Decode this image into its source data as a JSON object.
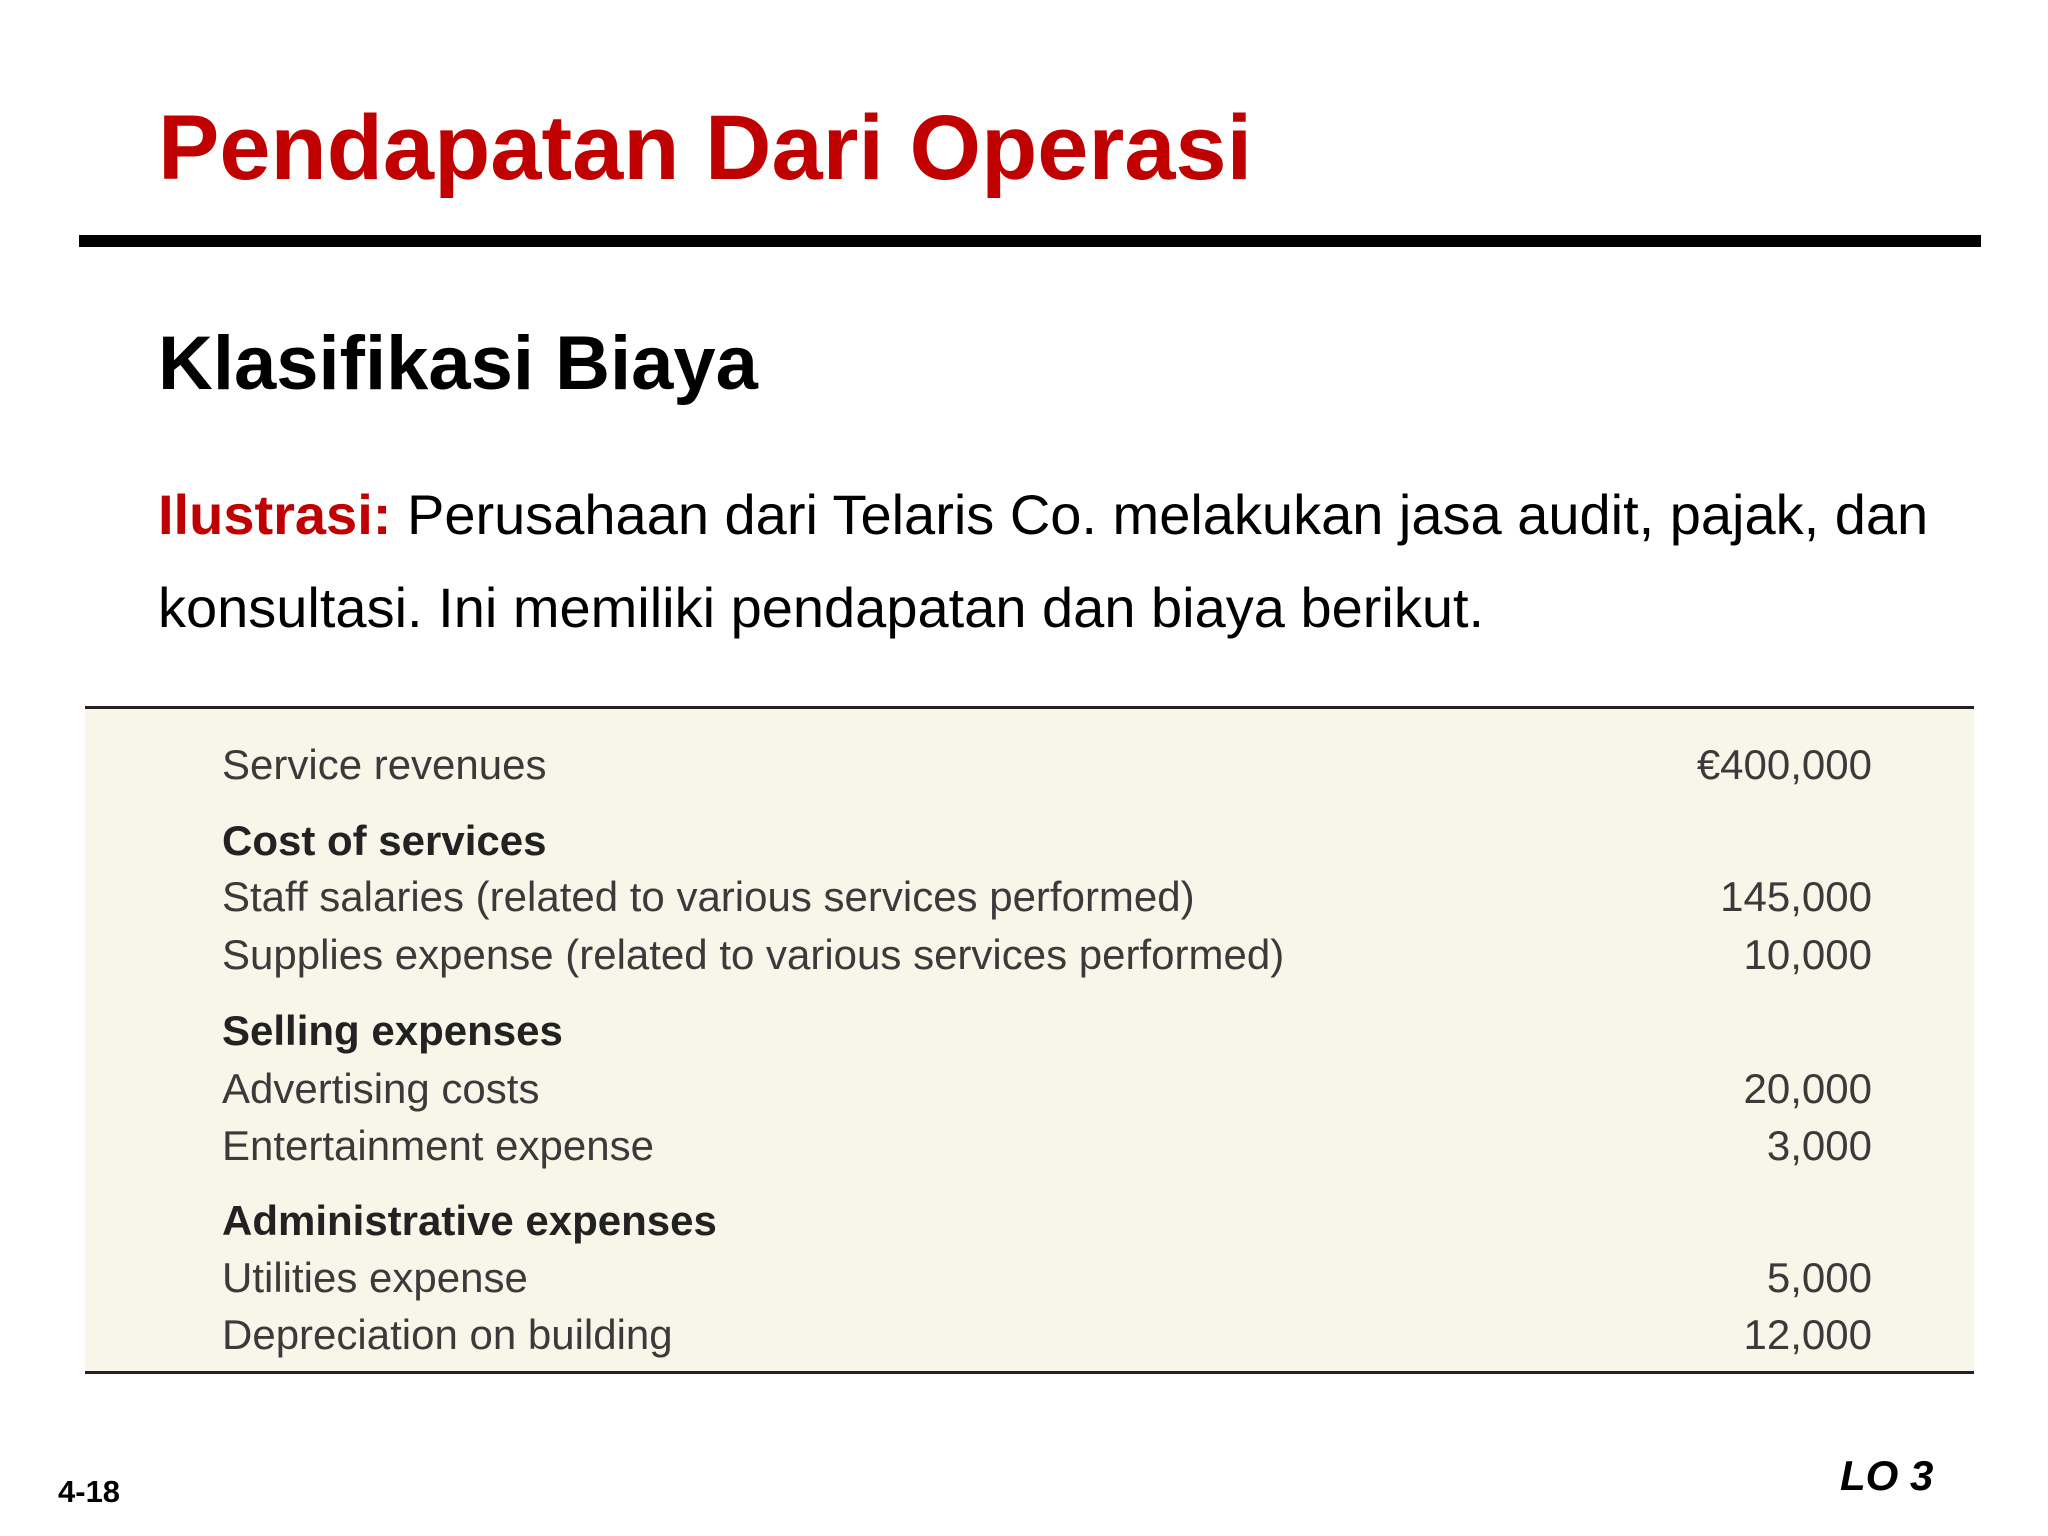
{
  "slide": {
    "title": "Pendapatan Dari Operasi",
    "subtitle": "Klasifikasi Biaya",
    "intro": {
      "lead": "Ilustrasi:",
      "text": "Perusahaan dari Telaris Co. melakukan jasa audit, pajak, dan konsultasi. Ini memiliki pendapatan dan biaya berikut."
    },
    "page_number": "4-18",
    "lo_label": "LO 3",
    "accent_color": "#c00000"
  },
  "table": {
    "background": "#f7f6e8",
    "rows": [
      {
        "label": "Service revenues",
        "amount": "€400,000"
      },
      {
        "label": "Cost of services",
        "amount": ""
      },
      {
        "label": "Staff salaries (related to various services performed)",
        "amount": "145,000"
      },
      {
        "label": "Supplies expense (related to various services performed)",
        "amount": "10,000"
      },
      {
        "label": "Selling expenses",
        "amount": ""
      },
      {
        "label": "Advertising costs",
        "amount": "20,000"
      },
      {
        "label": "Entertainment expense",
        "amount": "3,000"
      },
      {
        "label": "Administrative expenses",
        "amount": ""
      },
      {
        "label": "Utilities expense",
        "amount": "5,000"
      },
      {
        "label": "Depreciation on building",
        "amount": "12,000"
      }
    ]
  }
}
